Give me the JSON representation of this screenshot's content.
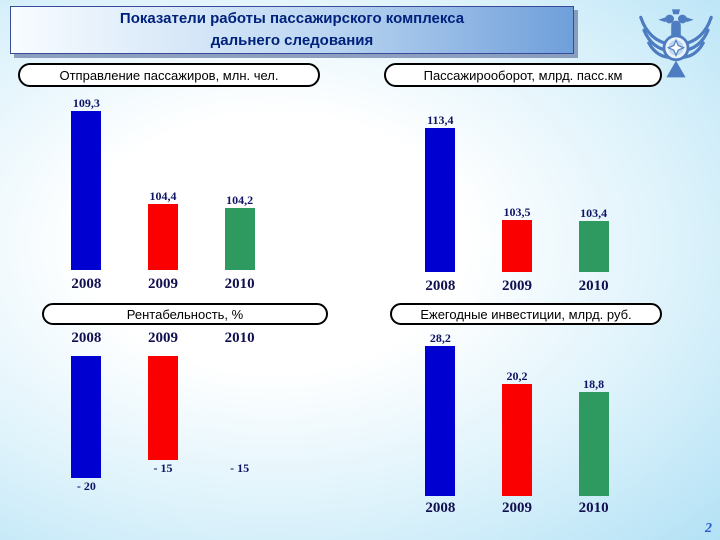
{
  "slide": {
    "title_line1": "Показатели работы пассажирского комплекса",
    "title_line2": "дальнего следования",
    "page_number": "2"
  },
  "colors": {
    "bar_2008": "#0000d0",
    "bar_2009": "#fb0000",
    "bar_2010": "#2f9a60",
    "title_text": "#00217c",
    "value_text": "#0f1464"
  },
  "chart_data": [
    {
      "type": "bar",
      "title": "Отправление пассажиров, млн. чел.",
      "categories": [
        "2008",
        "2009",
        "2010"
      ],
      "values": [
        109.3,
        104.4,
        104.2
      ],
      "display_values": [
        "109,3",
        "104,4",
        "104,2"
      ],
      "ylim": [
        101,
        110
      ],
      "direction": "up",
      "bar_colors": [
        "#0000d0",
        "#fb0000",
        "#2f9a60"
      ],
      "legend": "none",
      "grid": false
    },
    {
      "type": "bar",
      "title": "Пассажирооборот, млрд. пасс.км",
      "categories": [
        "2008",
        "2009",
        "2010"
      ],
      "values": [
        113.4,
        103.5,
        103.4
      ],
      "display_values": [
        "113,4",
        "103,5",
        "103,4"
      ],
      "ylim": [
        98,
        115
      ],
      "direction": "up",
      "bar_colors": [
        "#0000d0",
        "#fb0000",
        "#2f9a60"
      ],
      "legend": "none",
      "grid": false
    },
    {
      "type": "bar",
      "title": "Рентабельность, %",
      "categories": [
        "2008",
        "2009",
        "2010"
      ],
      "values": [
        -20,
        -15,
        -15
      ],
      "display_values": [
        "- 20",
        "- 15",
        "- 15"
      ],
      "ylim": [
        -20,
        0
      ],
      "direction": "down",
      "bar_colors": [
        "#0000d0",
        "#fb0000",
        null
      ],
      "legend": "none",
      "grid": false
    },
    {
      "type": "bar",
      "title": "Ежегодные инвестиции, млрд. руб.",
      "categories": [
        "2008",
        "2009",
        "2010"
      ],
      "values": [
        28.2,
        20.2,
        18.8
      ],
      "display_values": [
        "28,2",
        "20,2",
        "18,8"
      ],
      "ylim": [
        0,
        30
      ],
      "direction": "up",
      "bar_colors": [
        "#0000d0",
        "#fb0000",
        "#2f9a60"
      ],
      "legend": "none",
      "grid": false
    }
  ]
}
